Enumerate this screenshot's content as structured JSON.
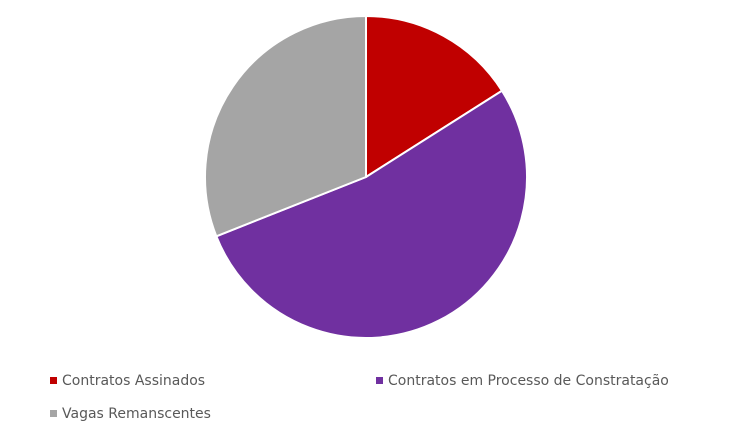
{
  "chart_data": {
    "type": "pie",
    "categories": [
      "Contratos Assinados",
      "Contratos em Processo de Constratação",
      "Vagas Remanscentes"
    ],
    "values": [
      16,
      53,
      31
    ],
    "colors": [
      "#c00000",
      "#7030a0",
      "#a5a5a5"
    ],
    "legend": "bottom"
  }
}
